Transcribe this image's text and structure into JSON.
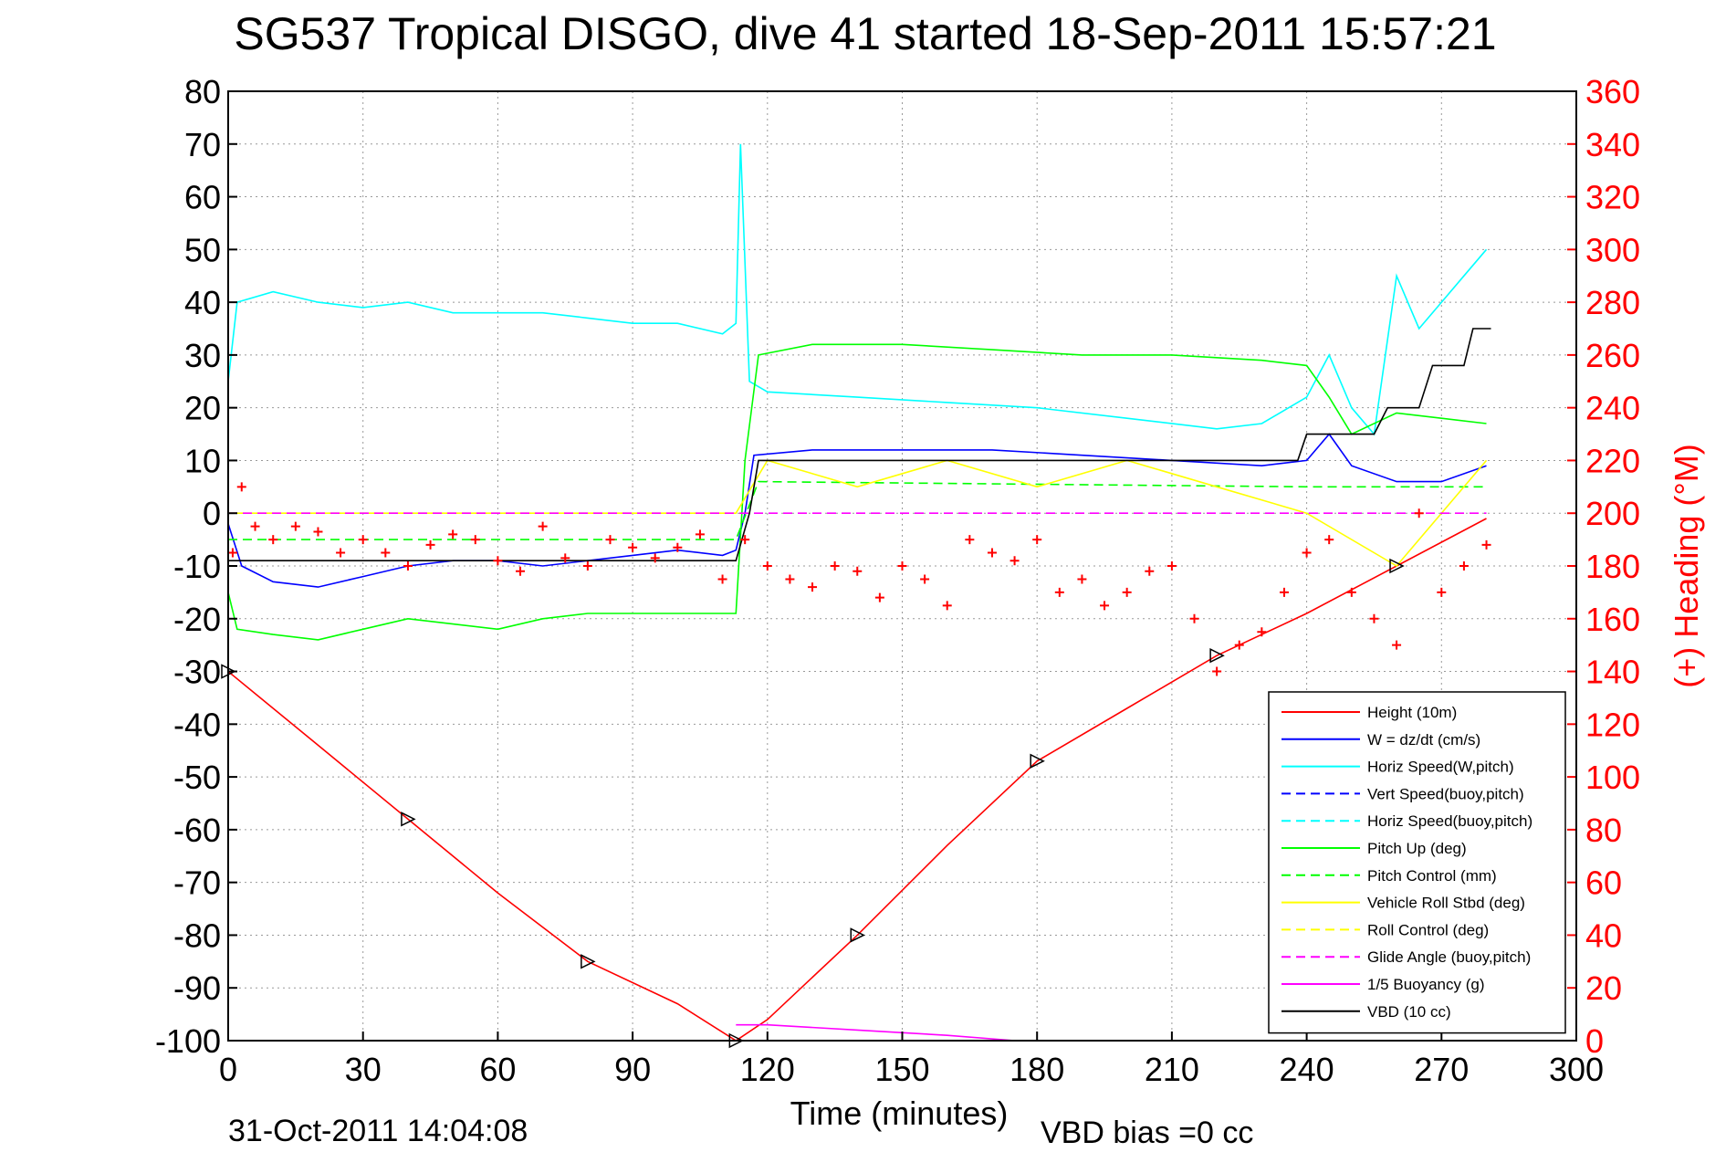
{
  "title": "SG537 Tropical DISGO, dive 41 started 18-Sep-2011 15:57:21",
  "footer_left": "31-Oct-2011 14:04:08",
  "footer_right": "VBD bias =0 cc",
  "colors": {
    "height": "#ff0000",
    "w": "#0000ff",
    "horiz": "#00ffff",
    "pitch": "#00ff00",
    "roll": "#ffff00",
    "glide": "#ff00ff",
    "vbd": "#000000",
    "heading": "#ff0000",
    "right_axis": "#ff0000"
  },
  "chart_data": {
    "type": "line",
    "xlabel": "Time (minutes)",
    "ylabel": "",
    "y2label": "(+) Heading (°M)",
    "xlim": [
      0,
      300
    ],
    "ylim": [
      -100,
      80
    ],
    "y2lim": [
      0,
      360
    ],
    "x_ticks": [
      0,
      30,
      60,
      90,
      120,
      150,
      180,
      210,
      240,
      270,
      300
    ],
    "y_ticks": [
      80,
      70,
      60,
      50,
      40,
      30,
      20,
      10,
      0,
      -10,
      -20,
      -30,
      -40,
      -50,
      -60,
      -70,
      -80,
      -90,
      -100
    ],
    "y2_ticks": [
      360,
      340,
      320,
      300,
      280,
      260,
      240,
      220,
      200,
      180,
      160,
      140,
      120,
      100,
      80,
      60,
      40,
      20,
      0
    ],
    "grid": true,
    "legend_position": "bottom-right",
    "series": [
      {
        "name": "Height (10m)",
        "color": "#ff0000",
        "style": "solid",
        "x": [
          0,
          20,
          40,
          60,
          80,
          100,
          113,
          120,
          140,
          160,
          180,
          200,
          220,
          240,
          260,
          280
        ],
        "y": [
          -30,
          -44,
          -58,
          -72,
          -85,
          -93,
          -100,
          -96,
          -80,
          -63,
          -47,
          -37,
          -27,
          -19,
          -10,
          -1
        ]
      },
      {
        "name": "W = dz/dt (cm/s)",
        "color": "#0000ff",
        "style": "solid",
        "x": [
          0,
          3,
          10,
          20,
          30,
          40,
          50,
          60,
          70,
          80,
          90,
          100,
          110,
          113,
          115,
          117,
          130,
          150,
          170,
          190,
          210,
          230,
          240,
          245,
          250,
          260,
          270,
          280
        ],
        "y": [
          -2,
          -10,
          -13,
          -14,
          -12,
          -10,
          -9,
          -9,
          -10,
          -9,
          -8,
          -7,
          -8,
          -7,
          0,
          11,
          12,
          12,
          12,
          11,
          10,
          9,
          10,
          15,
          9,
          6,
          6,
          9
        ]
      },
      {
        "name": "Horiz Speed(W,pitch)",
        "color": "#00ffff",
        "style": "solid",
        "x": [
          0,
          2,
          10,
          20,
          30,
          40,
          50,
          60,
          70,
          80,
          90,
          100,
          110,
          113,
          114,
          116,
          120,
          140,
          160,
          180,
          200,
          220,
          230,
          240,
          245,
          250,
          255,
          260,
          265,
          270,
          275,
          280
        ],
        "y": [
          25,
          40,
          42,
          40,
          39,
          40,
          38,
          38,
          38,
          37,
          36,
          36,
          34,
          36,
          70,
          25,
          23,
          22,
          21,
          20,
          18,
          16,
          17,
          22,
          30,
          20,
          15,
          45,
          35,
          40,
          45,
          50
        ]
      },
      {
        "name": "Vert Speed(buoy,pitch)",
        "color": "#0000ff",
        "style": "dashed",
        "x": [],
        "y": []
      },
      {
        "name": "Horiz Speed(buoy,pitch)",
        "color": "#00ffff",
        "style": "dashed",
        "x": [],
        "y": []
      },
      {
        "name": "Pitch Up (deg)",
        "color": "#00ff00",
        "style": "solid",
        "x": [
          0,
          2,
          10,
          20,
          30,
          40,
          50,
          60,
          70,
          80,
          90,
          100,
          110,
          113,
          115,
          118,
          130,
          150,
          170,
          190,
          210,
          230,
          240,
          245,
          250,
          260,
          270,
          280
        ],
        "y": [
          -15,
          -22,
          -23,
          -24,
          -22,
          -20,
          -21,
          -22,
          -20,
          -19,
          -19,
          -19,
          -19,
          -19,
          10,
          30,
          32,
          32,
          31,
          30,
          30,
          29,
          28,
          22,
          15,
          19,
          18,
          17
        ]
      },
      {
        "name": "Pitch Control (mm)",
        "color": "#00ff00",
        "style": "dashed",
        "x": [
          0,
          113,
          118,
          240,
          280
        ],
        "y": [
          -5,
          -5,
          6,
          5,
          5
        ]
      },
      {
        "name": "Vehicle Roll Stbd (deg)",
        "color": "#ffff00",
        "style": "solid",
        "x": [
          0,
          20,
          40,
          60,
          80,
          100,
          113,
          120,
          140,
          160,
          180,
          200,
          220,
          240,
          260,
          280
        ],
        "y": [
          0,
          0,
          0,
          0,
          0,
          0,
          0,
          10,
          5,
          10,
          5,
          10,
          5,
          0,
          -10,
          10
        ]
      },
      {
        "name": "Roll Control (deg)",
        "color": "#ffff00",
        "style": "dashed",
        "x": [],
        "y": []
      },
      {
        "name": "Glide Angle (buoy,pitch)",
        "color": "#ff00ff",
        "style": "dashed",
        "x": [
          0,
          280
        ],
        "y": [
          0,
          0
        ]
      },
      {
        "name": "1/5 Buoyancy (g)",
        "color": "#ff00ff",
        "style": "solid",
        "x": [
          113,
          120,
          140,
          160,
          175
        ],
        "y": [
          -97,
          -97,
          -98,
          -99,
          -100
        ]
      },
      {
        "name": "VBD (10 cc)",
        "color": "#000000",
        "style": "solid",
        "x": [
          0,
          113,
          116,
          118,
          238,
          240,
          255,
          258,
          265,
          268,
          275,
          277,
          281
        ],
        "y": [
          -9,
          -9,
          0,
          10,
          10,
          15,
          15,
          20,
          20,
          28,
          28,
          35,
          35
        ]
      },
      {
        "name": "Heading",
        "color": "#ff0000",
        "style": "markers",
        "x": [
          1,
          3,
          6,
          10,
          15,
          20,
          25,
          30,
          35,
          40,
          45,
          50,
          55,
          60,
          65,
          70,
          75,
          80,
          85,
          90,
          95,
          100,
          105,
          110,
          115,
          120,
          125,
          130,
          135,
          140,
          145,
          150,
          155,
          160,
          165,
          170,
          175,
          180,
          185,
          190,
          195,
          200,
          205,
          210,
          215,
          220,
          225,
          230,
          235,
          240,
          245,
          250,
          255,
          260,
          265,
          270,
          275,
          280
        ],
        "y": [
          185,
          210,
          195,
          190,
          195,
          193,
          185,
          190,
          185,
          180,
          188,
          192,
          190,
          182,
          178,
          195,
          183,
          180,
          190,
          187,
          183,
          187,
          192,
          175,
          190,
          180,
          175,
          172,
          180,
          178,
          168,
          180,
          175,
          165,
          190,
          185,
          182,
          190,
          170,
          175,
          165,
          170,
          178,
          180,
          160,
          140,
          150,
          155,
          170,
          185,
          190,
          170,
          160,
          150,
          200,
          170,
          180,
          188
        ]
      }
    ]
  }
}
